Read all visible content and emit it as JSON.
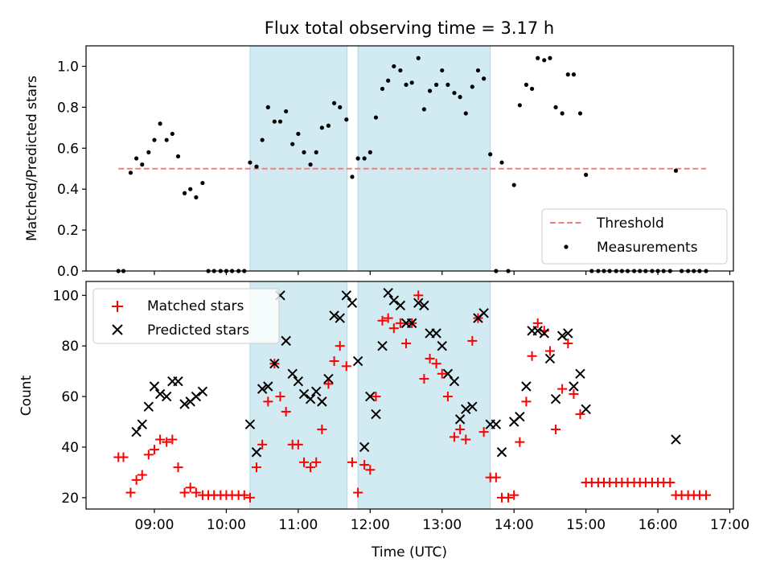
{
  "chart_data": {
    "title": "Flux total observing time = 3.17 h",
    "xlabel": "Time (UTC)",
    "x_tick_labels": [
      "09:00",
      "10:00",
      "11:00",
      "12:00",
      "13:00",
      "14:00",
      "15:00",
      "16:00",
      "17:00"
    ],
    "x_tick_values": [
      9,
      10,
      11,
      12,
      13,
      14,
      15,
      16,
      17
    ],
    "xlim": [
      8.05,
      17.05
    ],
    "shaded_intervals": [
      [
        10.33,
        11.68
      ],
      [
        11.83,
        13.67
      ]
    ],
    "colors": {
      "shade": "#add8e6",
      "threshold": "#f08080",
      "matched": "#ff0000",
      "predicted": "#000000",
      "measurements": "#000000"
    },
    "top": {
      "type": "scatter",
      "ylabel": "Matched/Predicted stars",
      "ylim": [
        0,
        1.1
      ],
      "y_ticks": [
        "0.0",
        "0.2",
        "0.4",
        "0.6",
        "0.8",
        "1.0"
      ],
      "y_tick_values": [
        0,
        0.2,
        0.4,
        0.6,
        0.8,
        1.0
      ],
      "threshold": {
        "name": "Threshold",
        "value": 0.5,
        "x_range": [
          8.5,
          16.67
        ]
      },
      "legend": {
        "position": "lower-right",
        "entries": [
          "Threshold",
          "Measurements"
        ]
      },
      "measurements": {
        "name": "Measurements",
        "x": [
          8.5,
          8.57,
          8.67,
          8.75,
          8.83,
          8.92,
          9.0,
          9.08,
          9.17,
          9.25,
          9.33,
          9.42,
          9.5,
          9.58,
          9.67,
          9.75,
          9.83,
          9.92,
          10.0,
          10.08,
          10.17,
          10.25,
          10.33,
          10.42,
          10.5,
          10.58,
          10.67,
          10.75,
          10.83,
          10.92,
          11.0,
          11.08,
          11.17,
          11.25,
          11.33,
          11.42,
          11.5,
          11.58,
          11.67,
          11.75,
          11.83,
          11.92,
          12.0,
          12.08,
          12.17,
          12.25,
          12.33,
          12.42,
          12.5,
          12.58,
          12.67,
          12.75,
          12.83,
          12.92,
          13.0,
          13.08,
          13.17,
          13.25,
          13.33,
          13.42,
          13.5,
          13.58,
          13.67,
          13.75,
          13.83,
          13.92,
          14.0,
          14.08,
          14.17,
          14.25,
          14.33,
          14.42,
          14.5,
          14.58,
          14.67,
          14.75,
          14.83,
          14.92,
          15.0,
          15.08,
          15.17,
          15.25,
          15.33,
          15.42,
          15.5,
          15.58,
          15.67,
          15.75,
          15.83,
          15.92,
          16.0,
          16.08,
          16.17,
          16.25,
          16.33,
          16.42,
          16.5,
          16.58,
          16.67
        ],
        "y": [
          0,
          0,
          0.48,
          0.55,
          0.52,
          0.58,
          0.64,
          0.72,
          0.64,
          0.67,
          0.56,
          0.38,
          0.4,
          0.36,
          0.43,
          0,
          0,
          0,
          0,
          0,
          0,
          0,
          0.53,
          0.51,
          0.64,
          0.8,
          0.73,
          0.73,
          0.78,
          0.62,
          0.67,
          0.58,
          0.52,
          0.58,
          0.7,
          0.71,
          0.82,
          0.8,
          0.74,
          0.46,
          0.55,
          0.55,
          0.58,
          0.75,
          0.89,
          0.93,
          1.0,
          0.98,
          0.91,
          0.92,
          1.04,
          0.79,
          0.88,
          0.91,
          0.98,
          0.91,
          0.87,
          0.85,
          0.77,
          0.9,
          0.98,
          0.94,
          0.57,
          0,
          0.53,
          0,
          0.42,
          0.81,
          0.91,
          0.89,
          1.04,
          1.03,
          1.04,
          0.8,
          0.77,
          0.96,
          0.96,
          0.77,
          0.47,
          0,
          0,
          0,
          0,
          0,
          0,
          0,
          0,
          0,
          0,
          0,
          0,
          0,
          0,
          0.49,
          0,
          0,
          0,
          0,
          0
        ]
      }
    },
    "bottom": {
      "type": "scatter",
      "ylabel": "Count",
      "ylim": [
        15.5,
        105.5
      ],
      "y_ticks": [
        "20",
        "40",
        "60",
        "80",
        "100"
      ],
      "y_tick_values": [
        20,
        40,
        60,
        80,
        100
      ],
      "legend": {
        "position": "upper-left",
        "entries": [
          "Matched stars",
          "Predicted stars"
        ]
      },
      "matched": {
        "name": "Matched stars",
        "marker": "+",
        "x": [
          8.5,
          8.57,
          8.67,
          8.75,
          8.83,
          8.92,
          9.0,
          9.08,
          9.17,
          9.25,
          9.33,
          9.42,
          9.5,
          9.58,
          9.67,
          9.75,
          9.83,
          9.92,
          10.0,
          10.08,
          10.17,
          10.25,
          10.33,
          10.42,
          10.5,
          10.58,
          10.67,
          10.75,
          10.83,
          10.92,
          11.0,
          11.08,
          11.17,
          11.25,
          11.33,
          11.42,
          11.5,
          11.58,
          11.67,
          11.75,
          11.83,
          11.92,
          12.0,
          12.08,
          12.17,
          12.25,
          12.33,
          12.42,
          12.5,
          12.58,
          12.67,
          12.75,
          12.83,
          12.92,
          13.0,
          13.08,
          13.17,
          13.25,
          13.33,
          13.42,
          13.5,
          13.58,
          13.67,
          13.75,
          13.83,
          13.92,
          14.0,
          14.08,
          14.17,
          14.25,
          14.33,
          14.42,
          14.5,
          14.58,
          14.67,
          14.75,
          14.83,
          14.92,
          15.0,
          15.08,
          15.17,
          15.25,
          15.33,
          15.42,
          15.5,
          15.58,
          15.67,
          15.75,
          15.83,
          15.92,
          16.0,
          16.08,
          16.17,
          16.25,
          16.33,
          16.42,
          16.5,
          16.58,
          16.67
        ],
        "y": [
          36,
          36,
          22,
          27,
          29,
          37,
          39,
          43,
          42,
          43,
          32,
          22,
          24,
          22,
          21,
          21,
          21,
          21,
          21,
          21,
          21,
          21,
          20,
          32,
          41,
          58,
          73,
          60,
          54,
          41,
          41,
          34,
          32,
          34,
          47,
          65,
          74,
          80,
          72,
          34,
          22,
          33,
          31,
          60,
          90,
          91,
          87,
          89,
          81,
          89,
          100,
          67,
          75,
          73,
          69,
          60,
          44,
          47,
          43,
          82,
          91,
          46,
          28,
          28,
          20,
          20,
          21,
          42,
          58,
          76,
          89,
          86,
          78,
          47,
          63,
          81,
          61,
          53,
          26,
          26,
          26,
          26,
          26,
          26,
          26,
          26,
          26,
          26,
          26,
          26,
          26,
          26,
          26,
          21,
          21,
          21,
          21,
          21,
          21
        ]
      },
      "predicted": {
        "name": "Predicted stars",
        "marker": "x",
        "x": [
          8.75,
          8.83,
          8.92,
          9.0,
          9.08,
          9.17,
          9.25,
          9.33,
          9.42,
          9.5,
          9.58,
          9.67,
          10.33,
          10.42,
          10.5,
          10.58,
          10.67,
          10.75,
          10.83,
          10.92,
          11.0,
          11.08,
          11.17,
          11.25,
          11.33,
          11.42,
          11.5,
          11.58,
          11.67,
          11.75,
          11.83,
          11.92,
          12.0,
          12.08,
          12.17,
          12.25,
          12.33,
          12.42,
          12.5,
          12.58,
          12.67,
          12.75,
          12.83,
          12.92,
          13.0,
          13.08,
          13.17,
          13.25,
          13.33,
          13.42,
          13.5,
          13.58,
          13.67,
          13.75,
          13.83,
          14.0,
          14.08,
          14.17,
          14.25,
          14.33,
          14.42,
          14.5,
          14.58,
          14.67,
          14.75,
          14.83,
          14.92,
          15.0,
          16.25
        ],
        "y": [
          46,
          49,
          56,
          64,
          61,
          60,
          66,
          66,
          57,
          58,
          60,
          62,
          49,
          38,
          63,
          64,
          73,
          100,
          82,
          69,
          66,
          61,
          59,
          62,
          58,
          67,
          92,
          91,
          100,
          97,
          74,
          40,
          60,
          53,
          80,
          101,
          98,
          96,
          89,
          89,
          97,
          96,
          85,
          85,
          80,
          69,
          66,
          51,
          55,
          56,
          91,
          93,
          49,
          49,
          38,
          50,
          52,
          64,
          86,
          86,
          85,
          75,
          59,
          84,
          85,
          64,
          69,
          55,
          43
        ]
      }
    }
  }
}
